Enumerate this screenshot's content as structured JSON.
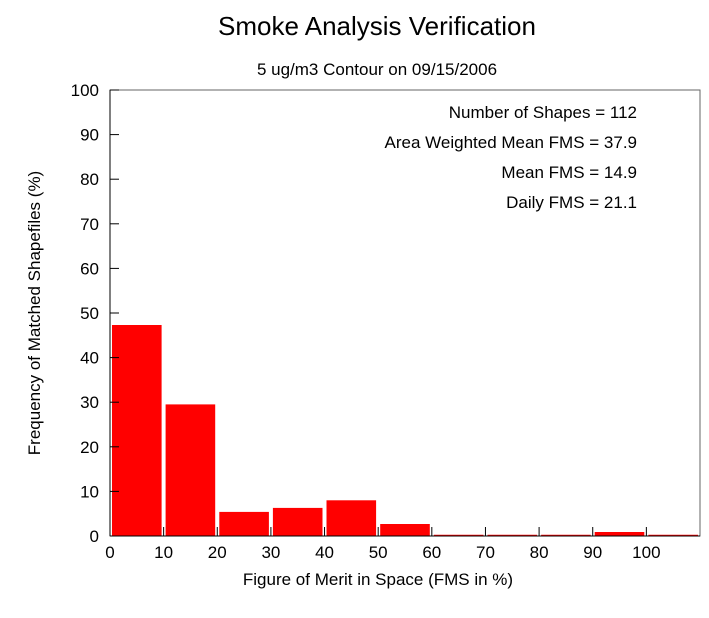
{
  "chart_data": {
    "type": "bar",
    "title": "Smoke Analysis Verification",
    "subtitle": "5 ug/m3 Contour on 09/15/2006",
    "xlabel": "Figure of Merit in Space (FMS in %)",
    "ylabel": "Frequency of Matched Shapefiles (%)",
    "xlim": [
      0,
      110
    ],
    "ylim": [
      0,
      100
    ],
    "xticks": [
      "0",
      "10",
      "20",
      "30",
      "40",
      "50",
      "60",
      "70",
      "80",
      "90",
      "100"
    ],
    "yticks": [
      "0",
      "10",
      "20",
      "30",
      "40",
      "50",
      "60",
      "70",
      "80",
      "90",
      "100"
    ],
    "bins": [
      {
        "start": 0,
        "end": 10,
        "value": 47.3
      },
      {
        "start": 10,
        "end": 20,
        "value": 29.5
      },
      {
        "start": 20,
        "end": 30,
        "value": 5.4
      },
      {
        "start": 30,
        "end": 40,
        "value": 6.3
      },
      {
        "start": 40,
        "end": 50,
        "value": 8.0
      },
      {
        "start": 50,
        "end": 60,
        "value": 2.7
      },
      {
        "start": 60,
        "end": 70,
        "value": 0
      },
      {
        "start": 70,
        "end": 80,
        "value": 0
      },
      {
        "start": 80,
        "end": 90,
        "value": 0
      },
      {
        "start": 90,
        "end": 100,
        "value": 0.9
      },
      {
        "start": 100,
        "end": 110,
        "value": 0
      }
    ],
    "bar_color": "#ff0000",
    "grid": false,
    "annotations": [
      "Number of Shapes = 112",
      "Area Weighted Mean FMS = 37.9",
      "Mean FMS = 14.9",
      "Daily FMS = 21.1"
    ]
  }
}
